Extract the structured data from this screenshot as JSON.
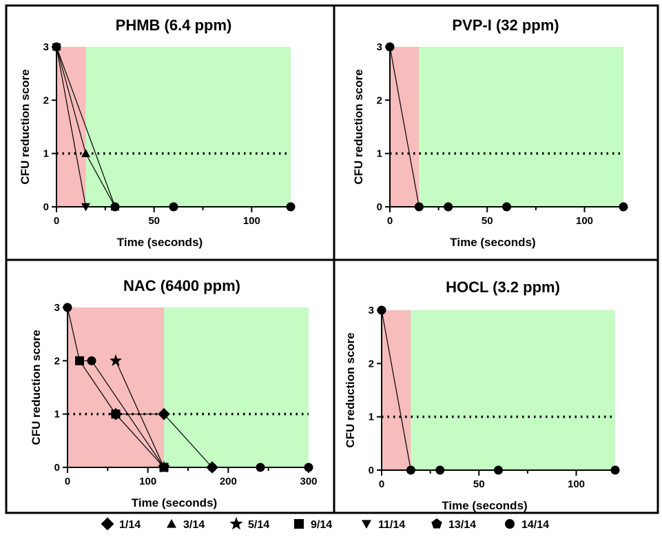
{
  "colors": {
    "fail_region": "#f7bcbc",
    "pass_region": "#c4fcc4",
    "ink": "#000000"
  },
  "legend": [
    {
      "marker": "diamond",
      "label": "1/14"
    },
    {
      "marker": "triangle-up",
      "label": "3/14"
    },
    {
      "marker": "star",
      "label": "5/14"
    },
    {
      "marker": "square",
      "label": "9/14"
    },
    {
      "marker": "triangle-down",
      "label": "11/14"
    },
    {
      "marker": "pentagon",
      "label": "13/14"
    },
    {
      "marker": "circle",
      "label": "14/14"
    }
  ],
  "chart_data": [
    {
      "type": "line",
      "title": "PHMB (6.4 ppm)",
      "xlabel": "Time (seconds)",
      "ylabel": "CFU reduction score",
      "xlim": [
        0,
        120
      ],
      "ylim": [
        0,
        3
      ],
      "xticks": [
        0,
        50,
        100
      ],
      "yticks": [
        0,
        1,
        2,
        3
      ],
      "threshold": 1,
      "red_region": [
        0,
        15
      ],
      "green_region": [
        15,
        120
      ],
      "series": [
        {
          "marker": "circle",
          "points": [
            [
              0,
              3
            ],
            [
              30,
              0
            ],
            [
              60,
              0
            ],
            [
              120,
              0
            ]
          ]
        },
        {
          "marker": "triangle-up",
          "points": [
            [
              0,
              3
            ],
            [
              15,
              1
            ],
            [
              30,
              0
            ]
          ]
        },
        {
          "marker": "triangle-down",
          "points": [
            [
              0,
              3
            ],
            [
              15,
              0
            ]
          ]
        }
      ]
    },
    {
      "type": "line",
      "title": "PVP-I (32 ppm)",
      "xlabel": "Time (seconds)",
      "ylabel": "CFU reduction score",
      "xlim": [
        0,
        120
      ],
      "ylim": [
        0,
        3
      ],
      "xticks": [
        0,
        50,
        100
      ],
      "yticks": [
        0,
        1,
        2,
        3
      ],
      "threshold": 1,
      "red_region": [
        0,
        15
      ],
      "green_region": [
        15,
        120
      ],
      "series": [
        {
          "marker": "circle",
          "points": [
            [
              0,
              3
            ],
            [
              15,
              0
            ],
            [
              30,
              0
            ],
            [
              60,
              0
            ],
            [
              120,
              0
            ]
          ]
        }
      ]
    },
    {
      "type": "line",
      "title": "NAC (6400 ppm)",
      "xlabel": "Time (seconds)",
      "ylabel": "CFU reduction score",
      "xlim": [
        0,
        300
      ],
      "ylim": [
        0,
        3
      ],
      "xticks": [
        0,
        100,
        200,
        300
      ],
      "yticks": [
        0,
        1,
        2,
        3
      ],
      "threshold": 1,
      "red_region": [
        0,
        120
      ],
      "green_region": [
        120,
        300
      ],
      "series": [
        {
          "marker": "circle",
          "points": [
            [
              0,
              3
            ],
            [
              15,
              2
            ],
            [
              30,
              2
            ],
            [
              120,
              0
            ],
            [
              180,
              0
            ],
            [
              240,
              0
            ],
            [
              300,
              0
            ]
          ]
        },
        {
          "marker": "star",
          "points": [
            [
              60,
              2
            ],
            [
              120,
              0
            ]
          ]
        },
        {
          "marker": "square",
          "points": [
            [
              15,
              2
            ],
            [
              60,
              1
            ],
            [
              120,
              0
            ]
          ]
        },
        {
          "marker": "diamond",
          "points": [
            [
              60,
              1
            ],
            [
              120,
              1
            ],
            [
              180,
              0
            ]
          ]
        },
        {
          "marker": "pentagon",
          "points": [
            [
              120,
              0
            ]
          ]
        }
      ]
    },
    {
      "type": "line",
      "title": "HOCL (3.2 ppm)",
      "xlabel": "Time (seconds)",
      "ylabel": "CFU reduction score",
      "xlim": [
        0,
        120
      ],
      "ylim": [
        0,
        3
      ],
      "xticks": [
        0,
        50,
        100
      ],
      "yticks": [
        0,
        1,
        2,
        3
      ],
      "threshold": 1,
      "red_region": [
        0,
        15
      ],
      "green_region": [
        15,
        120
      ],
      "series": [
        {
          "marker": "circle",
          "points": [
            [
              0,
              3
            ],
            [
              15,
              0
            ],
            [
              30,
              0
            ],
            [
              60,
              0
            ],
            [
              120,
              0
            ]
          ]
        }
      ]
    }
  ]
}
